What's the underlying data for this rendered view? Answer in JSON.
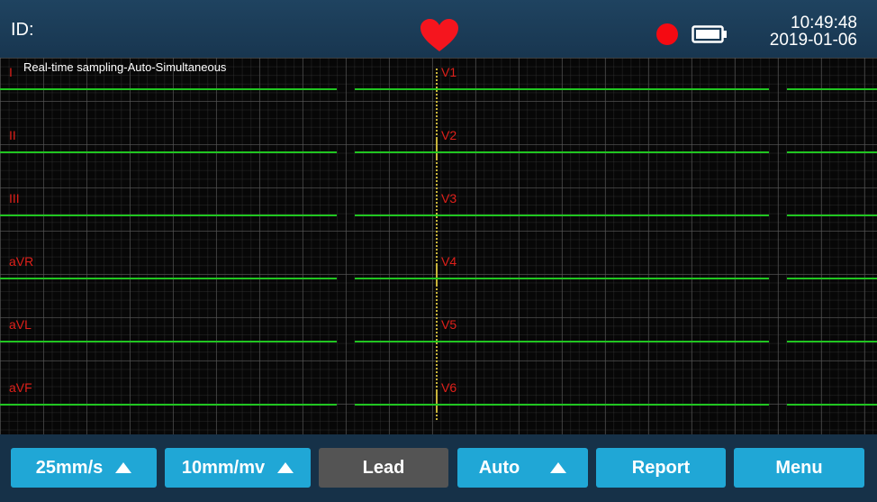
{
  "status": {
    "id_label": "ID:",
    "time": "10:49:48",
    "date": "2019-01-06",
    "heart_icon": "heart-icon",
    "record_icon": "record-dot-icon",
    "battery_icon": "battery-icon",
    "colors": {
      "heart": "#f5151e",
      "record": "#f50a12",
      "trace": "#21c521",
      "lead_label": "#e0201a",
      "button": "#20a7d6"
    }
  },
  "ecg": {
    "mode": "Real-time sampling-Auto-Simultaneous",
    "left_leads": [
      "I",
      "II",
      "III",
      "aVR",
      "aVL",
      "aVF"
    ],
    "right_leads": [
      "V1",
      "V2",
      "V3",
      "V4",
      "V5",
      "V6"
    ]
  },
  "buttons": {
    "speed": "25mm/s",
    "gain": "10mm/mv",
    "lead": "Lead",
    "auto": "Auto",
    "report": "Report",
    "menu": "Menu"
  }
}
